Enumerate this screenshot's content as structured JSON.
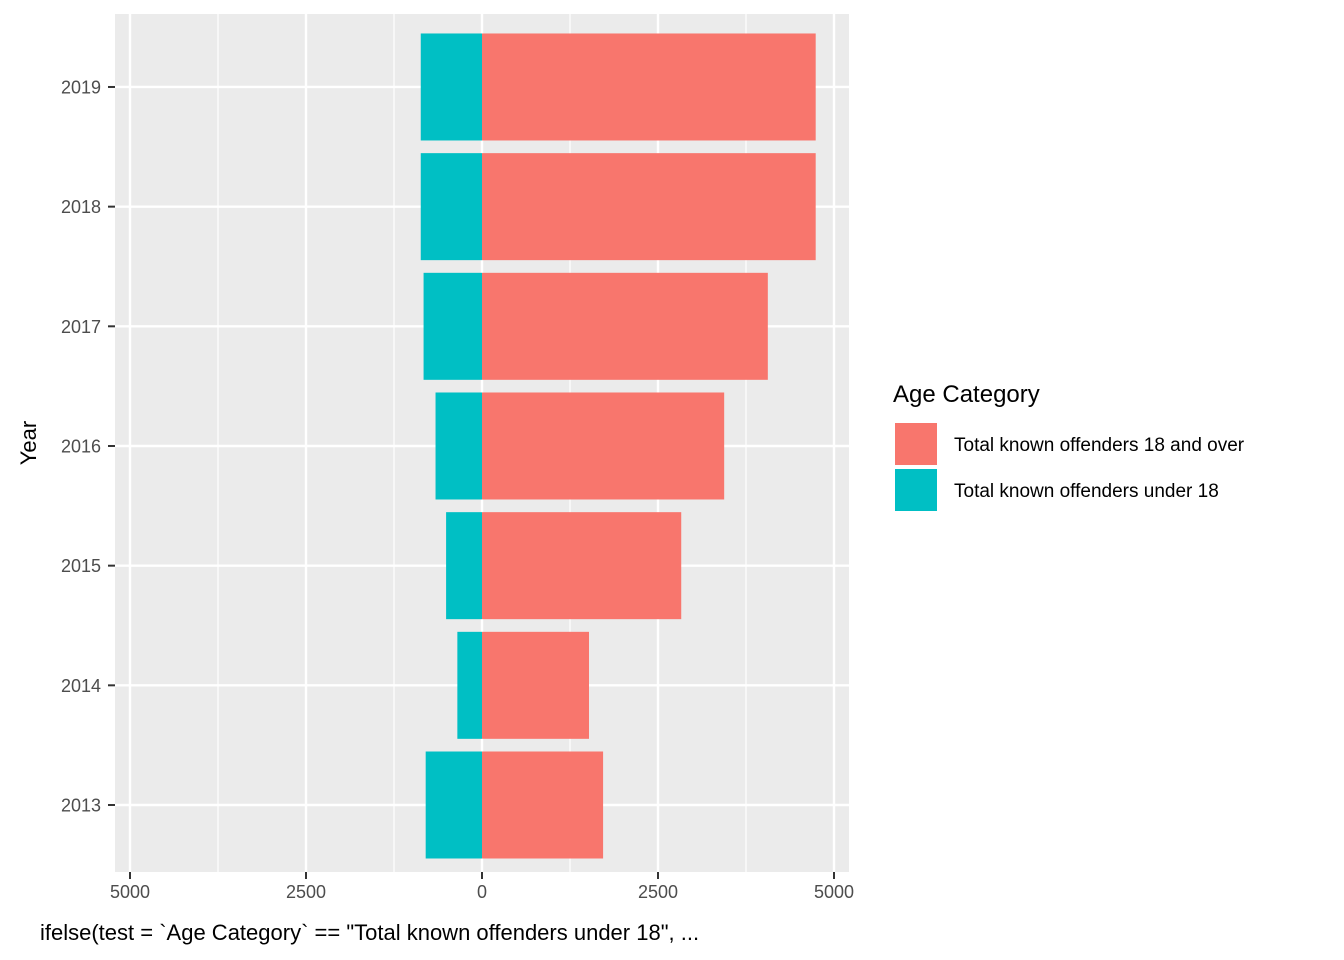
{
  "chart_data": {
    "type": "bar",
    "orientation": "horizontal",
    "layout": "diverging",
    "categories": [
      "2013",
      "2014",
      "2015",
      "2016",
      "2017",
      "2018",
      "2019"
    ],
    "series": [
      {
        "name": "Total known offenders 18 and over",
        "color": "#F8766D",
        "direction": "positive",
        "values": [
          1720,
          1520,
          2830,
          3440,
          4060,
          4740,
          4740
        ]
      },
      {
        "name": "Total known offenders under 18",
        "color": "#00BFC4",
        "direction": "negative",
        "values": [
          800,
          350,
          510,
          660,
          830,
          870,
          870
        ]
      }
    ],
    "xlabel": "ifelse(test = `Age Category` == \"Total known offenders under 18\", ...",
    "ylabel": "Year",
    "xlim": [
      -5200,
      5200
    ],
    "xticks": [
      {
        "value": -5000,
        "label": "5000"
      },
      {
        "value": -2500,
        "label": "2500"
      },
      {
        "value": 0,
        "label": "0"
      },
      {
        "value": 2500,
        "label": "2500"
      },
      {
        "value": 5000,
        "label": "5000"
      }
    ],
    "grid": true,
    "panel_background": "#EBEBEB",
    "legend": {
      "title": "Age Category",
      "position": "right"
    }
  }
}
